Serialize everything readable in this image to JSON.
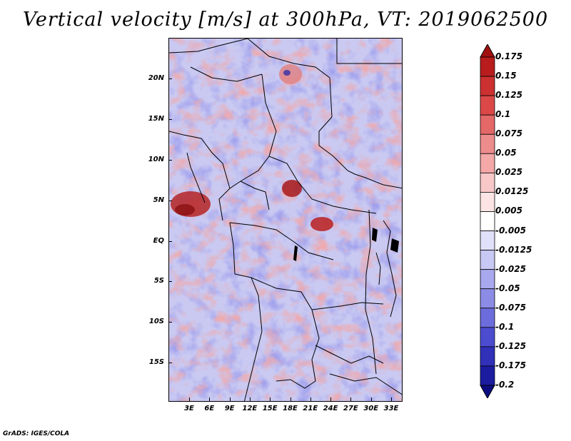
{
  "title": "Vertical velocity [m/s] at 300hPa, VT: 2019062500",
  "footer": "GrADS: IGES/COLA",
  "lat_labels": [
    "20N",
    "15N",
    "10N",
    "5N",
    "EQ",
    "5S",
    "10S",
    "15S"
  ],
  "lon_labels": [
    "3E",
    "6E",
    "9E",
    "12E",
    "15E",
    "18E",
    "21E",
    "24E",
    "27E",
    "30E",
    "33E"
  ],
  "colorbar": {
    "labels": [
      "0.175",
      "0.15",
      "0.125",
      "0.1",
      "0.075",
      "0.05",
      "0.025",
      "0.0125",
      "0.005",
      "-0.005",
      "-0.0125",
      "-0.025",
      "-0.05",
      "-0.075",
      "-0.1",
      "-0.125",
      "-0.175",
      "-0.2"
    ],
    "colors": [
      "#a01010",
      "#b81c1c",
      "#cc3030",
      "#dc4848",
      "#e46868",
      "#ec8c8c",
      "#f4a8a8",
      "#f8c8c8",
      "#fce4e4",
      "#ffffff",
      "#e0e0fa",
      "#c8c8f4",
      "#a8a8ee",
      "#8c8ce6",
      "#6c6cdc",
      "#4c4cd0",
      "#3030b8",
      "#1c1ca0",
      "#0c0c80"
    ]
  },
  "colors": {
    "frame": "#000000",
    "background": "#ffffff"
  }
}
